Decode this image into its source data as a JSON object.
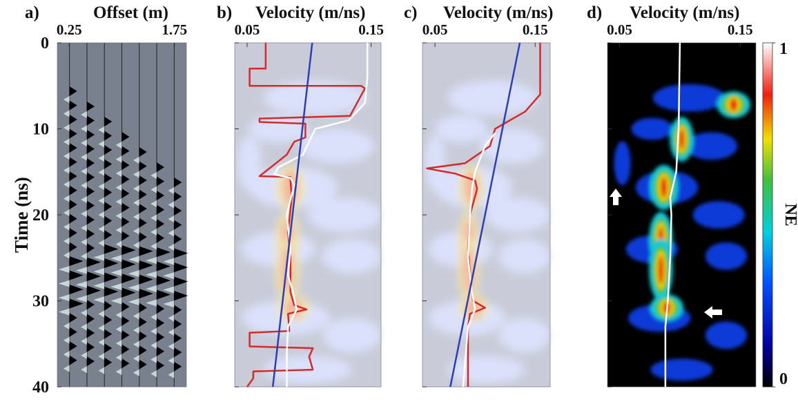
{
  "chart_data": [
    {
      "type": "wiggle",
      "panel_label": "a)",
      "title": "Offset (m)",
      "ylabel": "Time (ns)",
      "xlim": [
        0.08,
        1.92
      ],
      "xticks": [
        0.25,
        1.75
      ],
      "ylim": [
        0,
        40
      ],
      "yticks": [
        0,
        10,
        20,
        30,
        40
      ],
      "ytick_labels": true
    },
    {
      "type": "semblance",
      "panel_label": "b)",
      "title": "Velocity (m/ns)",
      "xlim": [
        0.04,
        0.158
      ],
      "xticks": [
        0.05,
        0.15
      ],
      "ylim": [
        0,
        40
      ],
      "yticks": [
        0,
        10,
        20,
        30,
        40
      ],
      "ytick_labels": false,
      "series": [
        {
          "color": "#d42a2a",
          "x": [
            0.065,
            0.065,
            0.052,
            0.052,
            0.142,
            0.145,
            0.133,
            0.06,
            0.06,
            0.097,
            0.097,
            0.088,
            0.082,
            0.06,
            0.085,
            0.085,
            0.086,
            0.083,
            0.085,
            0.085,
            0.088,
            0.098,
            0.083,
            0.084,
            0.052,
            0.052,
            0.103,
            0.1,
            0.103,
            0.055,
            0.055,
            0.05
          ],
          "y": [
            0,
            3,
            3,
            5,
            5,
            5.3,
            8.5,
            8.8,
            9.2,
            9.4,
            11,
            11.5,
            13,
            15.5,
            15.6,
            16,
            18,
            22,
            25,
            29,
            30.5,
            31,
            31.5,
            33.5,
            33.7,
            35.3,
            35.5,
            36.5,
            38,
            38.2,
            39,
            40
          ]
        },
        {
          "color": "#ffffff",
          "x": [
            0.147,
            0.147,
            0.145,
            0.132,
            0.105,
            0.1,
            0.095,
            0.075,
            0.072,
            0.085,
            0.088,
            0.082,
            0.085,
            0.083,
            0.087,
            0.09,
            0.083,
            0.082,
            0.082
          ],
          "y": [
            0,
            4,
            7,
            9,
            10,
            11.5,
            13,
            14.5,
            15.3,
            15.7,
            16.5,
            20,
            24,
            27,
            29,
            31,
            33,
            36,
            40
          ]
        },
        {
          "color": "#2b3fb5",
          "x": [
            0.1025,
            0.0707
          ],
          "y": [
            0,
            40
          ]
        }
      ]
    },
    {
      "type": "semblance",
      "panel_label": "c)",
      "title": "Velocity (m/ns)",
      "xlim": [
        0.0375,
        0.165
      ],
      "xticks": [
        0.05,
        0.15
      ],
      "ylim": [
        0,
        40
      ],
      "yticks": [
        0,
        10,
        20,
        30,
        40
      ],
      "ytick_labels": false,
      "series": [
        {
          "color": "#d42a2a",
          "x": [
            0.155,
            0.155,
            0.14,
            0.11,
            0.105,
            0.08,
            0.042,
            0.07,
            0.09,
            0.092,
            0.085,
            0.083,
            0.086,
            0.088,
            0.1,
            0.085,
            0.083,
            0.083
          ],
          "y": [
            0,
            6,
            8,
            10,
            12,
            14,
            14.6,
            15.2,
            16,
            17,
            20,
            24,
            28,
            30,
            30.8,
            31.5,
            33,
            40
          ]
        },
        {
          "color": "#ffffff",
          "x": [
            0.11,
            0.1,
            0.09,
            0.087,
            0.085,
            0.083,
            0.087,
            0.09,
            0.083,
            0.078
          ],
          "y": [
            10.5,
            12,
            15,
            17,
            20,
            25,
            29,
            31,
            33,
            40
          ]
        },
        {
          "color": "#2b3fb5",
          "x": [
            0.1347,
            0.0653
          ],
          "y": [
            0,
            40
          ]
        }
      ]
    },
    {
      "type": "heatmap",
      "panel_label": "d)",
      "title": "Velocity (m/ns)",
      "xlim": [
        0.04,
        0.163
      ],
      "xticks": [
        0.05,
        0.15
      ],
      "ylim": [
        0,
        40
      ],
      "yticks": [
        0,
        10,
        20,
        30,
        40
      ],
      "ytick_labels": false,
      "series": [
        {
          "color": "#ffffff",
          "x": [
            0.1,
            0.099,
            0.097,
            0.092,
            0.093,
            0.092,
            0.09,
            0.088,
            0.088
          ],
          "y": [
            0,
            10,
            15,
            18,
            20,
            25,
            30,
            33,
            40
          ]
        }
      ],
      "colorbar": {
        "label": "NE",
        "lim": [
          0,
          1
        ],
        "ticks": [
          0,
          1
        ]
      }
    }
  ]
}
